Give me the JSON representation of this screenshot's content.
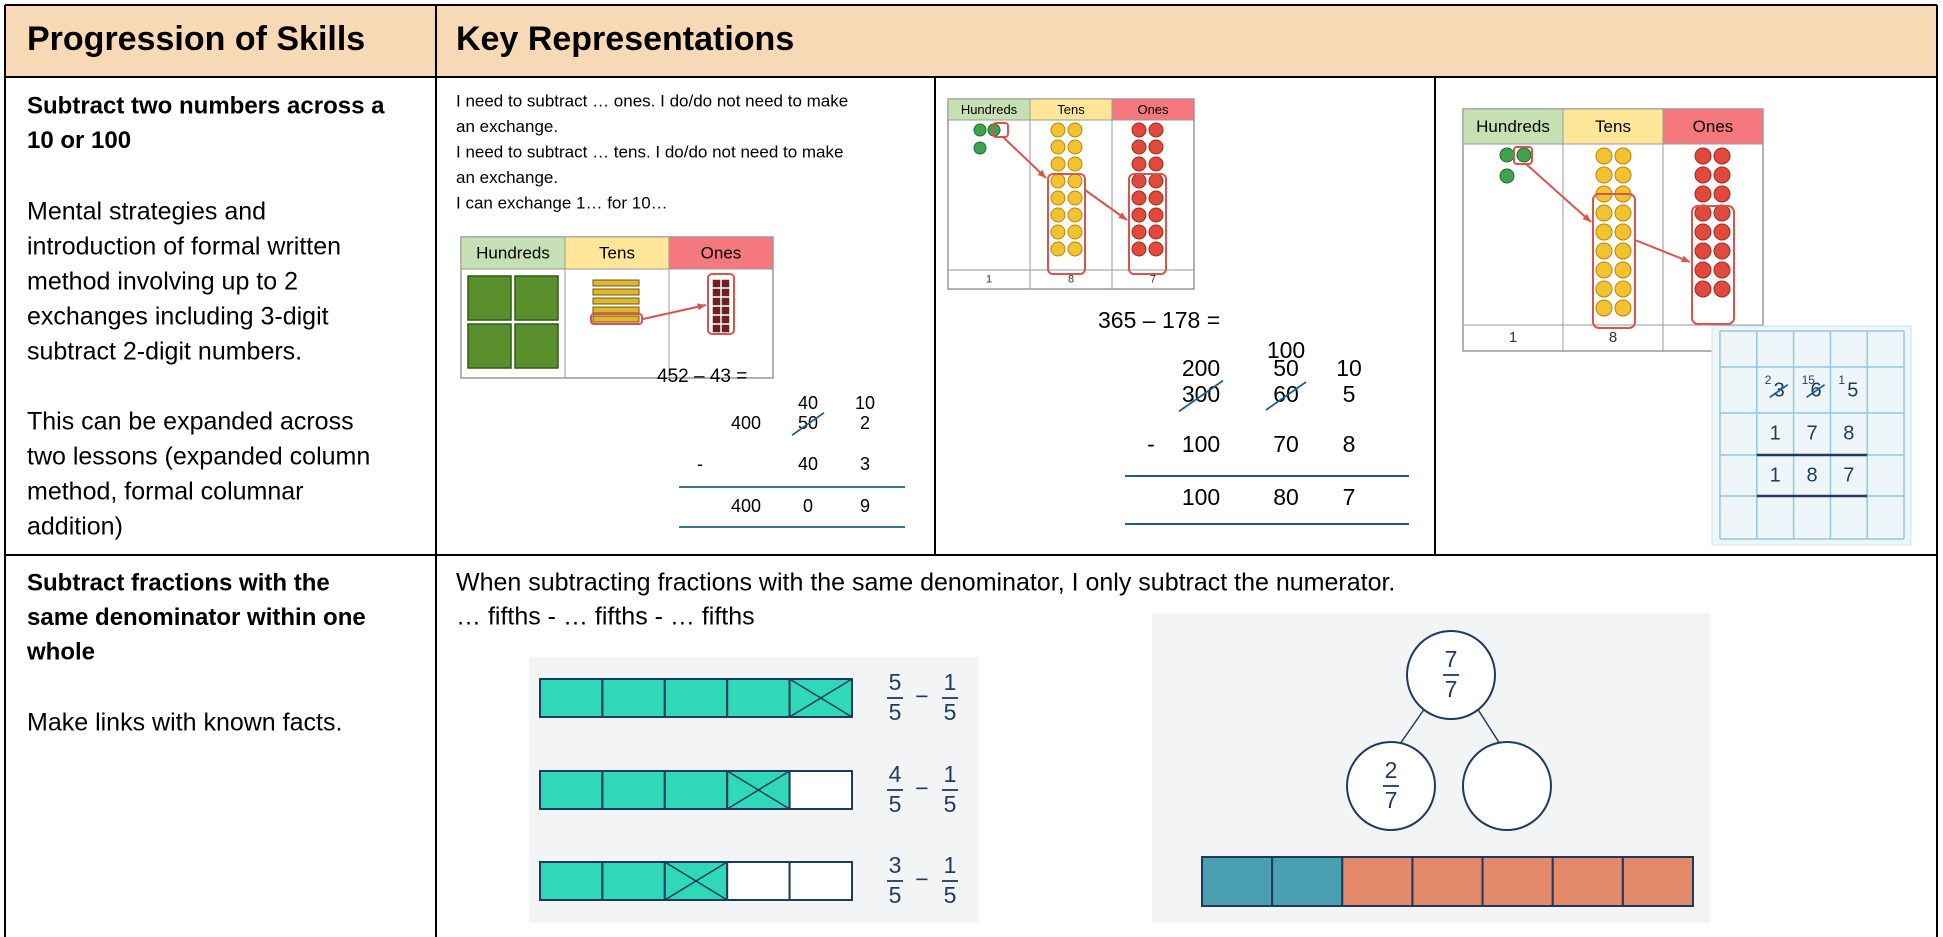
{
  "header": {
    "skills": "Progression of Skills",
    "representations": "Key Representations"
  },
  "rows": [
    {
      "skill": {
        "title": [
          "Subtract two numbers across a",
          "10 or 100"
        ],
        "paragraphs": [
          [
            "Mental strategies and",
            "introduction of formal written",
            "method involving up to 2",
            "exchanges including 3-digit",
            "subtract 2-digit numbers."
          ],
          [
            "This can be expanded across",
            "two lessons (expanded column",
            "method, formal columnar",
            "addition)"
          ]
        ]
      },
      "representations": [
        {
          "sentences": [
            "I need to subtract … ones. I do/do not need to make",
            "an exchange.",
            "I need to subtract … tens. I do/do not need to make",
            "an exchange.",
            "I can exchange 1… for 10…"
          ],
          "chart": {
            "headers": [
              "Hundreds",
              "Tens",
              "Ones"
            ]
          },
          "equation": "452 – 43 =",
          "exchanges": [
            [
              null,
              null,
              40,
              10
            ]
          ],
          "rows": [
            [
              null,
              400,
              50,
              2
            ],
            [
              "-",
              null,
              40,
              3
            ],
            [
              null,
              400,
              0,
              9
            ]
          ]
        },
        {
          "chart": {
            "headers": [
              "Hundreds",
              "Tens",
              "Ones"
            ],
            "footer": [
              1,
              8,
              7
            ]
          },
          "equation": "365 – 178 =",
          "exchanges": [
            [
              null,
              null,
              100,
              null
            ],
            [
              null,
              200,
              50,
              10
            ]
          ],
          "rows": [
            [
              null,
              300,
              60,
              5
            ],
            [
              "-",
              100,
              70,
              8
            ],
            [
              null,
              100,
              80,
              7
            ]
          ]
        },
        {
          "chart": {
            "headers": [
              "Hundreds",
              "Tens",
              "Ones"
            ],
            "footer": [
              1,
              8
            ]
          },
          "grid": {
            "exchanges": [
              2,
              15,
              1
            ],
            "rows": [
              [
                3,
                6,
                5
              ],
              [
                1,
                7,
                8
              ],
              [
                1,
                8,
                7
              ]
            ]
          }
        }
      ]
    },
    {
      "skill": {
        "title": [
          "Subtract fractions with the",
          "same denominator within one",
          "whole"
        ],
        "paragraphs": [
          [
            "Make links with known facts."
          ]
        ]
      },
      "representations": [
        {
          "sentences": [
            "When subtracting fractions with the same denominator, I only subtract the numerator.",
            "… fifths - … fifths - … fifths"
          ],
          "bars": [
            {
              "minuend": {
                "numerator": 5,
                "denominator": 5
              },
              "operator": "−",
              "subtrahend": {
                "numerator": 1,
                "denominator": 5
              }
            },
            {
              "minuend": {
                "numerator": 4,
                "denominator": 5
              },
              "operator": "−",
              "subtrahend": {
                "numerator": 1,
                "denominator": 5
              }
            },
            {
              "minuend": {
                "numerator": 3,
                "denominator": 5
              },
              "operator": "−",
              "subtrahend": {
                "numerator": 1,
                "denominator": 5
              }
            }
          ],
          "part_whole": {
            "whole": {
              "numerator": 7,
              "denominator": 7
            },
            "parts": [
              {
                "numerator": 2,
                "denominator": 7
              }
            ]
          }
        }
      ]
    }
  ]
}
